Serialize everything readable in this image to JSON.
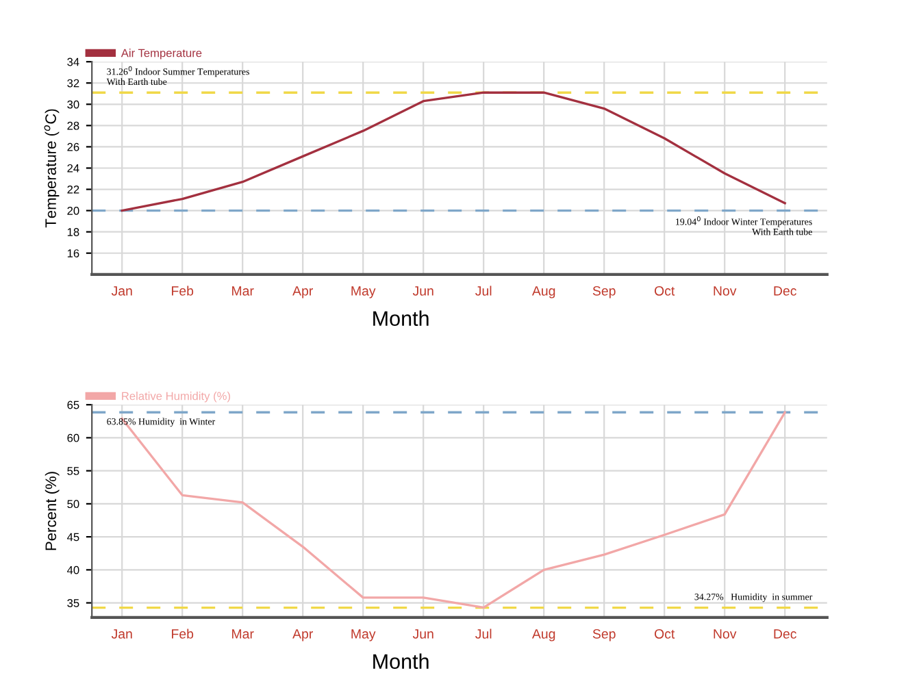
{
  "chart_data": [
    {
      "type": "line",
      "xlabel": "Month",
      "ylabel": "Temperature ($^{o}$C)",
      "categories": [
        "Jan",
        "Feb",
        "Mar",
        "Apr",
        "May",
        "Jun",
        "Jul",
        "Aug",
        "Sep",
        "Oct",
        "Nov",
        "Dec"
      ],
      "series": [
        {
          "name": "Air Temperature",
          "color": "#a3303f",
          "values": [
            20.0,
            21.1,
            22.7,
            25.1,
            27.5,
            30.3,
            31.1,
            31.1,
            29.6,
            26.8,
            23.5,
            20.7
          ]
        }
      ],
      "ylim": [
        14,
        34
      ],
      "yticks": [
        16,
        18,
        20,
        22,
        24,
        26,
        28,
        30,
        32,
        34
      ],
      "ref_lines": [
        {
          "axis": "y",
          "value": 20,
          "label": "19.04$^{0}$ Indoor Winter Temperatures\nWith Earth tube",
          "color": "#7fa7c9",
          "line_style": "dashed"
        },
        {
          "axis": "y",
          "value": 31.1,
          "label": "31.26$^{0}$ Indoor Summer Temperatures\nWith Earth tube",
          "color": "#f0d848",
          "line_style": "dashed"
        }
      ],
      "grid": true,
      "legend": "top left",
      "marker": "none",
      "line_style": "solid"
    },
    {
      "type": "line",
      "xlabel": "Month",
      "ylabel": "Percent (%)",
      "categories": [
        "Jan",
        "Feb",
        "Mar",
        "Apr",
        "May",
        "Jun",
        "Jul",
        "Aug",
        "Sep",
        "Oct",
        "Nov",
        "Dec"
      ],
      "series": [
        {
          "name": "Relative Humidity (%)",
          "color": "#f2a7a7",
          "values": [
            62.9,
            51.3,
            50.2,
            43.5,
            35.8,
            35.8,
            34.3,
            40.0,
            42.3,
            45.3,
            48.4,
            63.85
          ]
        }
      ],
      "ylim": [
        32.8,
        65
      ],
      "yticks": [
        35,
        40,
        45,
        50,
        55,
        60,
        65
      ],
      "ref_lines": [
        {
          "axis": "y",
          "value": 34.27,
          "label": "34.27%   Humidity  in summer",
          "color": "#f0d848",
          "line_style": "dashed"
        },
        {
          "axis": "y",
          "value": 63.85,
          "label": "63.85% Humidity  in Winter",
          "color": "#7fa7c9",
          "line_style": "dashed"
        }
      ],
      "grid": true,
      "legend": "top left",
      "marker": "none",
      "line_style": "solid"
    }
  ]
}
